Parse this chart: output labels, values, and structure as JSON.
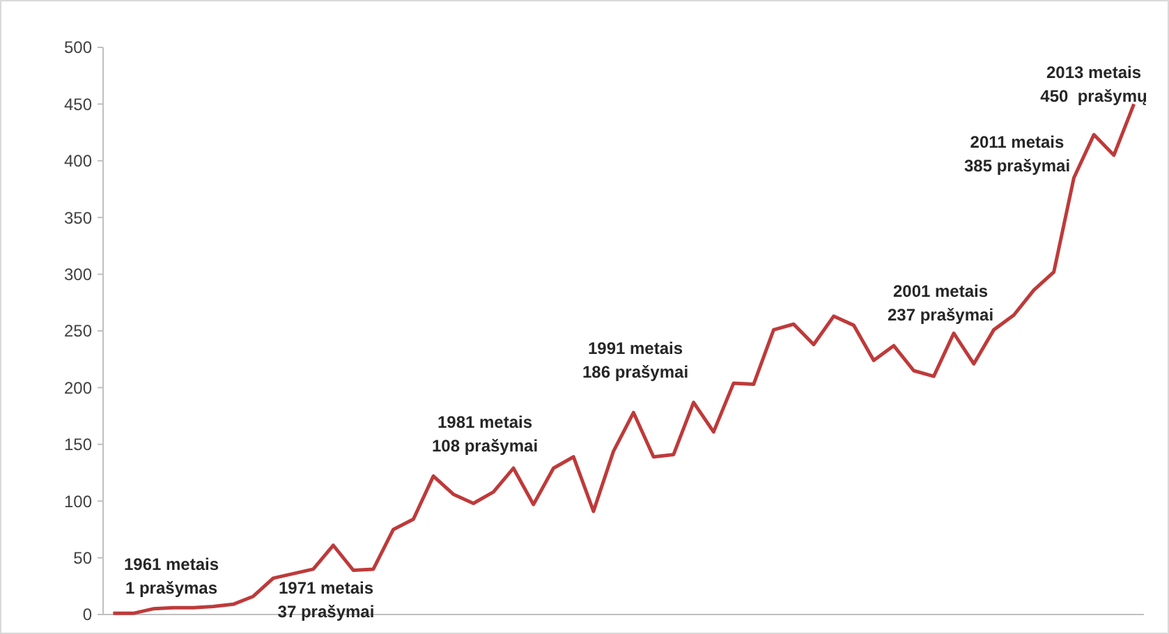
{
  "chart_data": {
    "type": "line",
    "categories": [
      null,
      null,
      null,
      null,
      null,
      null,
      null,
      null,
      null,
      null,
      null,
      null,
      null,
      null,
      null,
      null,
      null,
      null,
      null,
      null,
      null,
      null,
      null,
      null,
      null,
      null,
      null,
      null,
      null,
      null,
      null,
      null,
      null,
      null,
      null,
      null,
      null,
      null,
      null,
      null,
      null,
      null,
      null,
      null,
      null,
      null,
      null,
      null,
      null,
      null,
      null,
      null
    ],
    "series": [
      {
        "color": "#be3a3a",
        "values": [
          1,
          1,
          5,
          6,
          6,
          7,
          9,
          16,
          32,
          36,
          40,
          61,
          39,
          40,
          75,
          84,
          122,
          106,
          98,
          108,
          129,
          97,
          129,
          139,
          91,
          144,
          178,
          139,
          141,
          187,
          161,
          204,
          203,
          251,
          256,
          238,
          263,
          255,
          224,
          237,
          215,
          210,
          248,
          221,
          251,
          264,
          286,
          302,
          385,
          423,
          405,
          450
        ]
      }
    ],
    "ylim": [
      0,
      500
    ],
    "yticks": [
      0,
      50,
      100,
      150,
      200,
      250,
      300,
      350,
      400,
      450,
      500
    ],
    "grid": false,
    "marker": "none",
    "line_style": "solid",
    "annotations": [
      "1961 metais\n1 prašymas",
      "1971 metais\n37 prašymai",
      "1981 metais\n108 prašymai",
      "1991 metais\n186 prašymai",
      "2001 metais\n237 prašymai",
      "2011 metais\n385 prašymai",
      "2013 metais\n450  prašymų"
    ]
  }
}
